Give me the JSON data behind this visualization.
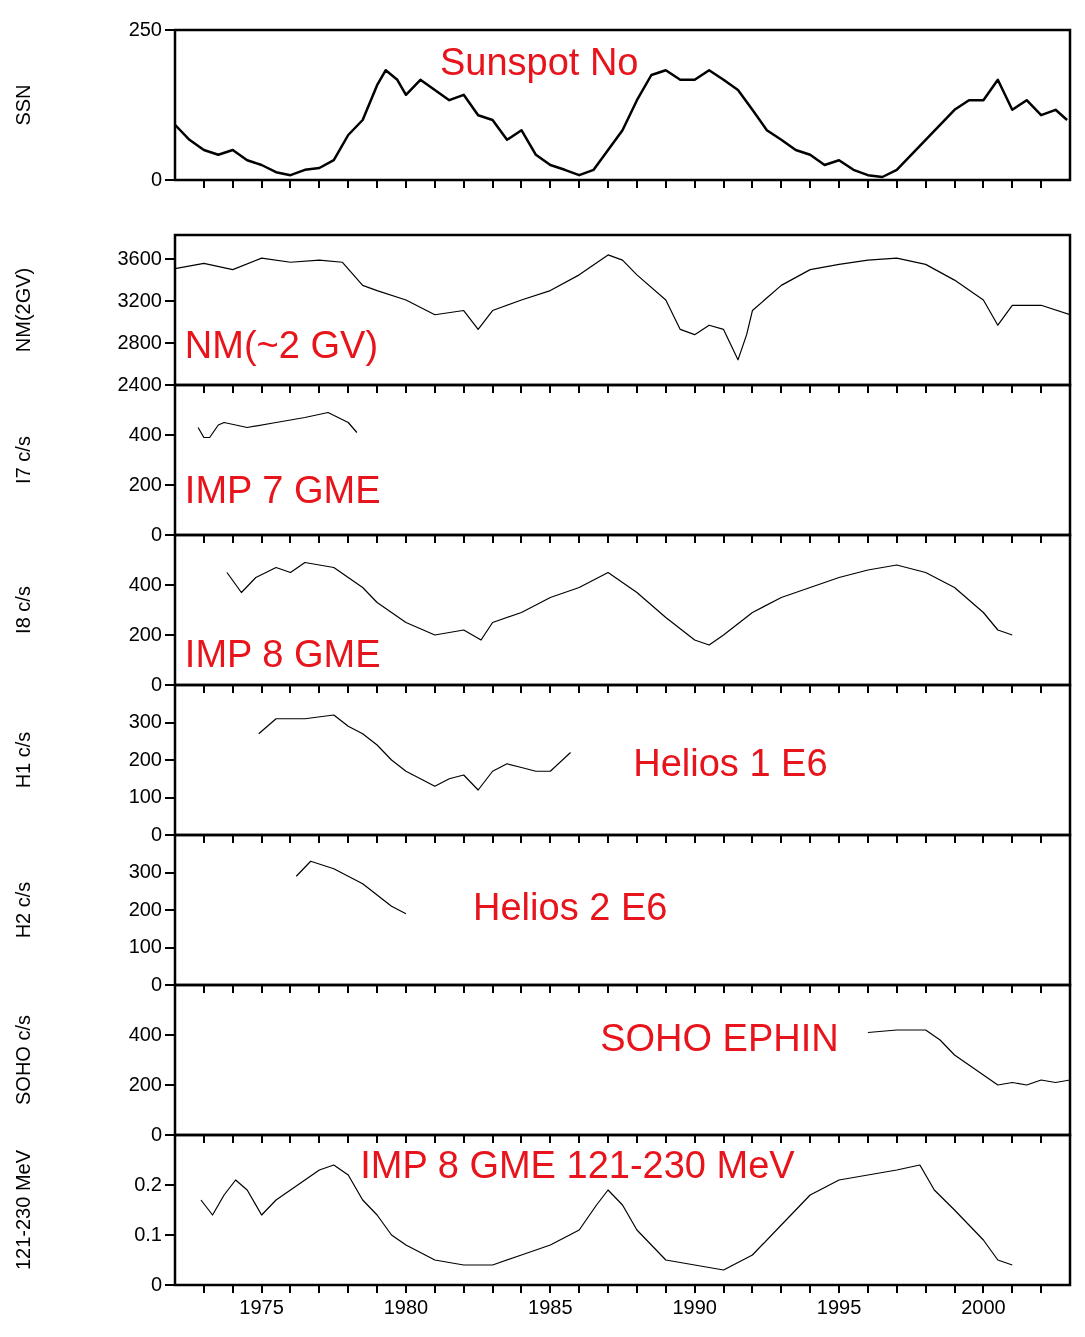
{
  "chart_data": [
    {
      "type": "line",
      "ylabel": "SSN",
      "annotations": [
        "Sunspot No"
      ],
      "tick_labels": "y",
      "xlim": [
        1972,
        2003
      ],
      "ylim": [
        0,
        250
      ],
      "yticks": [
        0,
        250
      ],
      "xticks": [
        {
          "value": 1973,
          "label": null
        },
        {
          "value": 1974,
          "label": null
        },
        1975,
        {
          "value": 1976,
          "label": null
        },
        {
          "value": 1977,
          "label": null
        },
        {
          "value": 1978,
          "label": null
        },
        {
          "value": 1979,
          "label": null
        },
        1980,
        {
          "value": 1981,
          "label": null
        },
        {
          "value": 1982,
          "label": null
        },
        {
          "value": 1983,
          "label": null
        },
        {
          "value": 1984,
          "label": null
        },
        1985,
        {
          "value": 1986,
          "label": null
        },
        {
          "value": 1987,
          "label": null
        },
        {
          "value": 1988,
          "label": null
        },
        {
          "value": 1989,
          "label": null
        },
        1990,
        {
          "value": 1991,
          "label": null
        },
        {
          "value": 1992,
          "label": null
        },
        {
          "value": 1993,
          "label": null
        },
        {
          "value": 1994,
          "label": null
        },
        1995,
        {
          "value": 1996,
          "label": null
        },
        {
          "value": 1997,
          "label": null
        },
        {
          "value": 1998,
          "label": null
        },
        {
          "value": 1999,
          "label": null
        },
        2000,
        {
          "value": 2001,
          "label": null
        },
        {
          "value": 2002,
          "label": null
        }
      ],
      "x": [
        1972.0,
        1972.5,
        1973.0,
        1973.5,
        1974.0,
        1974.5,
        1975.0,
        1975.5,
        1976.0,
        1976.5,
        1977.0,
        1977.5,
        1978.0,
        1978.5,
        1979.0,
        1979.3,
        1979.7,
        1980.0,
        1980.5,
        1981.0,
        1981.5,
        1982.0,
        1982.5,
        1983.0,
        1983.5,
        1984.0,
        1984.5,
        1985.0,
        1985.5,
        1986.0,
        1986.5,
        1987.0,
        1987.5,
        1988.0,
        1988.5,
        1989.0,
        1989.5,
        1990.0,
        1990.5,
        1991.0,
        1991.5,
        1992.0,
        1992.5,
        1993.0,
        1993.5,
        1994.0,
        1994.5,
        1995.0,
        1995.5,
        1996.0,
        1996.5,
        1997.0,
        1997.5,
        1998.0,
        1998.5,
        1999.0,
        1999.5,
        2000.0,
        2000.5,
        2001.0,
        2001.5,
        2002.0,
        2002.5,
        2002.9
      ],
      "series": [
        {
          "color": "#000000",
          "values": [
            92,
            67,
            50,
            42,
            50,
            33,
            25,
            13,
            8,
            17,
            20,
            33,
            75,
            100,
            158,
            183,
            167,
            142,
            167,
            150,
            133,
            142,
            108,
            100,
            67,
            83,
            42,
            25,
            17,
            8,
            17,
            50,
            83,
            133,
            175,
            183,
            167,
            167,
            183,
            167,
            150,
            117,
            83,
            67,
            50,
            42,
            25,
            33,
            17,
            8,
            5,
            17,
            42,
            67,
            92,
            117,
            133,
            133,
            167,
            117,
            133,
            108,
            117,
            100
          ]
        }
      ]
    },
    {
      "type": "line",
      "ylabel": "NM(2GV)",
      "annotations": [
        "NM(~2 GV)"
      ],
      "tick_labels": "y",
      "xlim": [
        1972,
        2003
      ],
      "ylim": [
        2400,
        3830
      ],
      "yticks": [
        2400,
        2800,
        3200,
        3600
      ],
      "xticks": [
        {
          "value": 1973,
          "label": null
        },
        {
          "value": 1974,
          "label": null
        },
        1975,
        {
          "value": 1976,
          "label": null
        },
        {
          "value": 1977,
          "label": null
        },
        {
          "value": 1978,
          "label": null
        },
        {
          "value": 1979,
          "label": null
        },
        1980,
        {
          "value": 1981,
          "label": null
        },
        {
          "value": 1982,
          "label": null
        },
        {
          "value": 1983,
          "label": null
        },
        {
          "value": 1984,
          "label": null
        },
        1985,
        {
          "value": 1986,
          "label": null
        },
        {
          "value": 1987,
          "label": null
        },
        {
          "value": 1988,
          "label": null
        },
        {
          "value": 1989,
          "label": null
        },
        1990,
        {
          "value": 1991,
          "label": null
        },
        {
          "value": 1992,
          "label": null
        },
        {
          "value": 1993,
          "label": null
        },
        {
          "value": 1994,
          "label": null
        },
        1995,
        {
          "value": 1996,
          "label": null
        },
        {
          "value": 1997,
          "label": null
        },
        {
          "value": 1998,
          "label": null
        },
        {
          "value": 1999,
          "label": null
        },
        2000,
        {
          "value": 2001,
          "label": null
        },
        {
          "value": 2002,
          "label": null
        }
      ],
      "x": [
        1972.0,
        1973.0,
        1974.0,
        1975.0,
        1976.0,
        1977.0,
        1977.8,
        1978.5,
        1979.0,
        1980.0,
        1981.0,
        1982.0,
        1982.5,
        1983.0,
        1984.0,
        1985.0,
        1986.0,
        1987.0,
        1987.5,
        1988.0,
        1989.0,
        1989.5,
        1990.0,
        1990.5,
        1991.0,
        1991.5,
        1991.8,
        1992.0,
        1993.0,
        1994.0,
        1995.0,
        1996.0,
        1997.0,
        1998.0,
        1999.0,
        2000.0,
        2000.5,
        2001.0,
        2002.0,
        2003.0
      ],
      "series": [
        {
          "color": "#000000",
          "values": [
            3510,
            3560,
            3500,
            3610,
            3570,
            3590,
            3570,
            3350,
            3300,
            3210,
            3070,
            3110,
            2930,
            3110,
            3210,
            3300,
            3450,
            3640,
            3590,
            3450,
            3210,
            2930,
            2880,
            2970,
            2930,
            2640,
            2880,
            3110,
            3350,
            3500,
            3550,
            3590,
            3610,
            3550,
            3400,
            3210,
            2970,
            3160,
            3160,
            3070
          ]
        }
      ]
    },
    {
      "type": "line",
      "ylabel": "I7 c/s",
      "annotations": [
        "IMP 7 GME"
      ],
      "tick_labels": "y",
      "xlim": [
        1972,
        2003
      ],
      "ylim": [
        0,
        600
      ],
      "yticks": [
        0,
        200,
        400
      ],
      "xticks": [
        {
          "value": 1973,
          "label": null
        },
        {
          "value": 1974,
          "label": null
        },
        1975,
        {
          "value": 1976,
          "label": null
        },
        {
          "value": 1977,
          "label": null
        },
        {
          "value": 1978,
          "label": null
        },
        {
          "value": 1979,
          "label": null
        },
        1980,
        {
          "value": 1981,
          "label": null
        },
        {
          "value": 1982,
          "label": null
        },
        {
          "value": 1983,
          "label": null
        },
        {
          "value": 1984,
          "label": null
        },
        1985,
        {
          "value": 1986,
          "label": null
        },
        {
          "value": 1987,
          "label": null
        },
        {
          "value": 1988,
          "label": null
        },
        {
          "value": 1989,
          "label": null
        },
        1990,
        {
          "value": 1991,
          "label": null
        },
        {
          "value": 1992,
          "label": null
        },
        {
          "value": 1993,
          "label": null
        },
        {
          "value": 1994,
          "label": null
        },
        1995,
        {
          "value": 1996,
          "label": null
        },
        {
          "value": 1997,
          "label": null
        },
        {
          "value": 1998,
          "label": null
        },
        {
          "value": 1999,
          "label": null
        },
        2000,
        {
          "value": 2001,
          "label": null
        },
        {
          "value": 2002,
          "label": null
        }
      ],
      "x": [
        1972.8,
        1973.0,
        1973.2,
        1973.5,
        1973.7,
        1974.5,
        1975.5,
        1976.5,
        1977.3,
        1978.0,
        1978.3
      ],
      "series": [
        {
          "color": "#000000",
          "values": [
            430,
            390,
            390,
            440,
            450,
            430,
            450,
            470,
            490,
            450,
            410
          ]
        }
      ]
    },
    {
      "type": "line",
      "ylabel": "I8 c/s",
      "annotations": [
        "IMP 8 GME"
      ],
      "tick_labels": "y",
      "xlim": [
        1972,
        2003
      ],
      "ylim": [
        0,
        600
      ],
      "yticks": [
        0,
        200,
        400
      ],
      "xticks": [
        {
          "value": 1973,
          "label": null
        },
        {
          "value": 1974,
          "label": null
        },
        1975,
        {
          "value": 1976,
          "label": null
        },
        {
          "value": 1977,
          "label": null
        },
        {
          "value": 1978,
          "label": null
        },
        {
          "value": 1979,
          "label": null
        },
        1980,
        {
          "value": 1981,
          "label": null
        },
        {
          "value": 1982,
          "label": null
        },
        {
          "value": 1983,
          "label": null
        },
        {
          "value": 1984,
          "label": null
        },
        1985,
        {
          "value": 1986,
          "label": null
        },
        {
          "value": 1987,
          "label": null
        },
        {
          "value": 1988,
          "label": null
        },
        {
          "value": 1989,
          "label": null
        },
        1990,
        {
          "value": 1991,
          "label": null
        },
        {
          "value": 1992,
          "label": null
        },
        {
          "value": 1993,
          "label": null
        },
        {
          "value": 1994,
          "label": null
        },
        1995,
        {
          "value": 1996,
          "label": null
        },
        {
          "value": 1997,
          "label": null
        },
        {
          "value": 1998,
          "label": null
        },
        {
          "value": 1999,
          "label": null
        },
        2000,
        {
          "value": 2001,
          "label": null
        },
        {
          "value": 2002,
          "label": null
        }
      ],
      "x": [
        1973.8,
        1974.3,
        1974.8,
        1975.5,
        1976.0,
        1976.5,
        1977.5,
        1978.0,
        1978.5,
        1979.0,
        1980.0,
        1981.0,
        1982.0,
        1982.6,
        1983.0,
        1984.0,
        1985.0,
        1986.0,
        1987.0,
        1988.0,
        1989.0,
        1990.0,
        1990.5,
        1991.0,
        1992.0,
        1993.0,
        1994.0,
        1995.0,
        1996.0,
        1997.0,
        1998.0,
        1999.0,
        2000.0,
        2000.5,
        2001.0
      ],
      "series": [
        {
          "color": "#000000",
          "values": [
            450,
            370,
            430,
            470,
            450,
            490,
            470,
            430,
            390,
            330,
            250,
            200,
            220,
            180,
            250,
            290,
            350,
            390,
            450,
            370,
            270,
            180,
            160,
            200,
            290,
            350,
            390,
            430,
            460,
            480,
            450,
            390,
            290,
            220,
            200
          ]
        }
      ]
    },
    {
      "type": "line",
      "ylabel": "H1 c/s",
      "annotations": [
        "Helios 1 E6"
      ],
      "tick_labels": "y",
      "xlim": [
        1972,
        2003
      ],
      "ylim": [
        0,
        400
      ],
      "yticks": [
        0,
        100,
        200,
        300
      ],
      "xticks": [
        {
          "value": 1973,
          "label": null
        },
        {
          "value": 1974,
          "label": null
        },
        1975,
        {
          "value": 1976,
          "label": null
        },
        {
          "value": 1977,
          "label": null
        },
        {
          "value": 1978,
          "label": null
        },
        {
          "value": 1979,
          "label": null
        },
        1980,
        {
          "value": 1981,
          "label": null
        },
        {
          "value": 1982,
          "label": null
        },
        {
          "value": 1983,
          "label": null
        },
        {
          "value": 1984,
          "label": null
        },
        1985,
        {
          "value": 1986,
          "label": null
        },
        {
          "value": 1987,
          "label": null
        },
        {
          "value": 1988,
          "label": null
        },
        {
          "value": 1989,
          "label": null
        },
        1990,
        {
          "value": 1991,
          "label": null
        },
        {
          "value": 1992,
          "label": null
        },
        {
          "value": 1993,
          "label": null
        },
        {
          "value": 1994,
          "label": null
        },
        1995,
        {
          "value": 1996,
          "label": null
        },
        {
          "value": 1997,
          "label": null
        },
        {
          "value": 1998,
          "label": null
        },
        {
          "value": 1999,
          "label": null
        },
        2000,
        {
          "value": 2001,
          "label": null
        },
        {
          "value": 2002,
          "label": null
        }
      ],
      "x": [
        1974.9,
        1975.5,
        1976.5,
        1977.5,
        1978.0,
        1978.5,
        1979.0,
        1979.5,
        1980.0,
        1980.5,
        1981.0,
        1981.5,
        1982.0,
        1982.5,
        1983.0,
        1983.5,
        1984.0,
        1984.5,
        1985.0,
        1985.7
      ],
      "series": [
        {
          "color": "#000000",
          "values": [
            270,
            310,
            310,
            320,
            290,
            270,
            240,
            200,
            170,
            150,
            130,
            150,
            160,
            120,
            170,
            190,
            180,
            170,
            170,
            220
          ]
        }
      ]
    },
    {
      "type": "line",
      "ylabel": "H2 c/s",
      "annotations": [
        "Helios 2 E6"
      ],
      "tick_labels": "y",
      "xlim": [
        1972,
        2003
      ],
      "ylim": [
        0,
        400
      ],
      "yticks": [
        0,
        100,
        200,
        300
      ],
      "xticks": [
        {
          "value": 1973,
          "label": null
        },
        {
          "value": 1974,
          "label": null
        },
        1975,
        {
          "value": 1976,
          "label": null
        },
        {
          "value": 1977,
          "label": null
        },
        {
          "value": 1978,
          "label": null
        },
        {
          "value": 1979,
          "label": null
        },
        1980,
        {
          "value": 1981,
          "label": null
        },
        {
          "value": 1982,
          "label": null
        },
        {
          "value": 1983,
          "label": null
        },
        {
          "value": 1984,
          "label": null
        },
        1985,
        {
          "value": 1986,
          "label": null
        },
        {
          "value": 1987,
          "label": null
        },
        {
          "value": 1988,
          "label": null
        },
        {
          "value": 1989,
          "label": null
        },
        1990,
        {
          "value": 1991,
          "label": null
        },
        {
          "value": 1992,
          "label": null
        },
        {
          "value": 1993,
          "label": null
        },
        {
          "value": 1994,
          "label": null
        },
        1995,
        {
          "value": 1996,
          "label": null
        },
        {
          "value": 1997,
          "label": null
        },
        {
          "value": 1998,
          "label": null
        },
        {
          "value": 1999,
          "label": null
        },
        2000,
        {
          "value": 2001,
          "label": null
        },
        {
          "value": 2002,
          "label": null
        }
      ],
      "x": [
        1976.2,
        1976.7,
        1977.5,
        1978.0,
        1978.5,
        1979.0,
        1979.5,
        1980.0
      ],
      "series": [
        {
          "color": "#000000",
          "values": [
            290,
            330,
            310,
            290,
            270,
            240,
            210,
            190
          ]
        }
      ]
    },
    {
      "type": "line",
      "ylabel": "SOHO c/s",
      "annotations": [
        "SOHO EPHIN"
      ],
      "tick_labels": "y",
      "xlim": [
        1972,
        2003
      ],
      "ylim": [
        0,
        600
      ],
      "yticks": [
        0,
        200,
        400
      ],
      "xticks": [
        {
          "value": 1973,
          "label": null
        },
        {
          "value": 1974,
          "label": null
        },
        1975,
        {
          "value": 1976,
          "label": null
        },
        {
          "value": 1977,
          "label": null
        },
        {
          "value": 1978,
          "label": null
        },
        {
          "value": 1979,
          "label": null
        },
        1980,
        {
          "value": 1981,
          "label": null
        },
        {
          "value": 1982,
          "label": null
        },
        {
          "value": 1983,
          "label": null
        },
        {
          "value": 1984,
          "label": null
        },
        1985,
        {
          "value": 1986,
          "label": null
        },
        {
          "value": 1987,
          "label": null
        },
        {
          "value": 1988,
          "label": null
        },
        {
          "value": 1989,
          "label": null
        },
        1990,
        {
          "value": 1991,
          "label": null
        },
        {
          "value": 1992,
          "label": null
        },
        {
          "value": 1993,
          "label": null
        },
        {
          "value": 1994,
          "label": null
        },
        1995,
        {
          "value": 1996,
          "label": null
        },
        {
          "value": 1997,
          "label": null
        },
        {
          "value": 1998,
          "label": null
        },
        {
          "value": 1999,
          "label": null
        },
        2000,
        {
          "value": 2001,
          "label": null
        },
        {
          "value": 2002,
          "label": null
        }
      ],
      "x": [
        1996.0,
        1997.0,
        1998.0,
        1998.5,
        1999.0,
        1999.5,
        2000.0,
        2000.5,
        2001.0,
        2001.5,
        2002.0,
        2002.5,
        2003.0
      ],
      "series": [
        {
          "color": "#000000",
          "values": [
            410,
            420,
            420,
            380,
            320,
            280,
            240,
            200,
            210,
            200,
            220,
            210,
            220
          ]
        }
      ]
    },
    {
      "type": "line",
      "ylabel": "121-230 MeV",
      "annotations": [
        "IMP 8 GME 121-230 MeV"
      ],
      "xlim": [
        1972,
        2003
      ],
      "ylim": [
        0,
        0.3
      ],
      "yticks": [
        0,
        0.1,
        0.2
      ],
      "xticks": [
        {
          "value": 1973,
          "label": null
        },
        {
          "value": 1974,
          "label": null
        },
        1975,
        {
          "value": 1976,
          "label": null
        },
        {
          "value": 1977,
          "label": null
        },
        {
          "value": 1978,
          "label": null
        },
        {
          "value": 1979,
          "label": null
        },
        1980,
        {
          "value": 1981,
          "label": null
        },
        {
          "value": 1982,
          "label": null
        },
        {
          "value": 1983,
          "label": null
        },
        {
          "value": 1984,
          "label": null
        },
        1985,
        {
          "value": 1986,
          "label": null
        },
        {
          "value": 1987,
          "label": null
        },
        {
          "value": 1988,
          "label": null
        },
        {
          "value": 1989,
          "label": null
        },
        1990,
        {
          "value": 1991,
          "label": null
        },
        {
          "value": 1992,
          "label": null
        },
        {
          "value": 1993,
          "label": null
        },
        {
          "value": 1994,
          "label": null
        },
        1995,
        {
          "value": 1996,
          "label": null
        },
        {
          "value": 1997,
          "label": null
        },
        {
          "value": 1998,
          "label": null
        },
        {
          "value": 1999,
          "label": null
        },
        2000,
        {
          "value": 2001,
          "label": null
        },
        {
          "value": 2002,
          "label": null
        }
      ],
      "x": [
        1972.9,
        1973.3,
        1973.7,
        1974.1,
        1974.5,
        1975.0,
        1975.5,
        1976.0,
        1976.5,
        1977.0,
        1977.5,
        1978.0,
        1978.5,
        1979.0,
        1979.5,
        1980.0,
        1981.0,
        1982.0,
        1983.0,
        1984.0,
        1985.0,
        1986.0,
        1986.6,
        1987.0,
        1987.5,
        1988.0,
        1989.0,
        1990.0,
        1991.0,
        1992.0,
        1993.0,
        1994.0,
        1995.0,
        1996.0,
        1997.0,
        1997.8,
        1998.3,
        1999.0,
        2000.0,
        2000.5,
        2001.0
      ],
      "series": [
        {
          "color": "#000000",
          "values": [
            0.17,
            0.14,
            0.18,
            0.21,
            0.19,
            0.14,
            0.17,
            0.19,
            0.21,
            0.23,
            0.24,
            0.22,
            0.17,
            0.14,
            0.1,
            0.08,
            0.05,
            0.04,
            0.04,
            0.06,
            0.08,
            0.11,
            0.16,
            0.19,
            0.16,
            0.11,
            0.05,
            0.04,
            0.03,
            0.06,
            0.12,
            0.18,
            0.21,
            0.22,
            0.23,
            0.24,
            0.19,
            0.15,
            0.09,
            0.05,
            0.04
          ]
        }
      ]
    }
  ]
}
